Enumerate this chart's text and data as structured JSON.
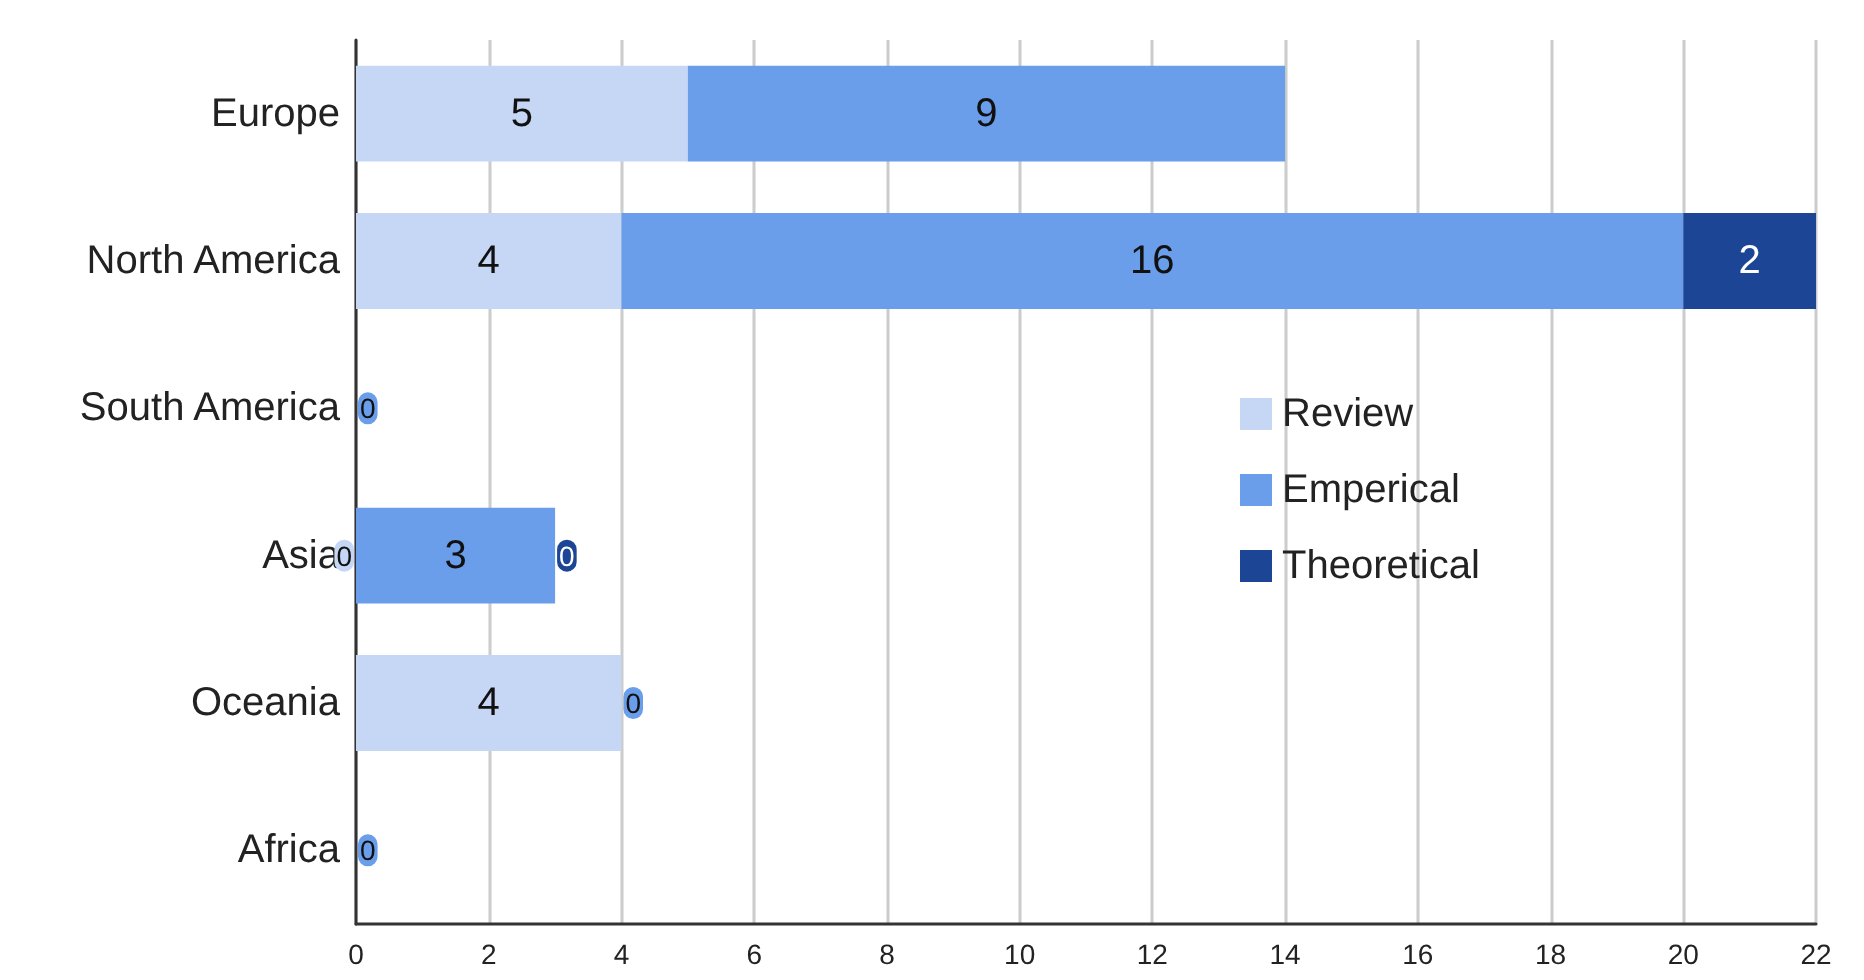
{
  "chart_data": {
    "type": "bar",
    "orientation": "horizontal",
    "stacked": true,
    "categories": [
      "Europe",
      "North America",
      "South America",
      "Asia",
      "Oceania",
      "Africa"
    ],
    "series": [
      {
        "name": "Review",
        "color": "#c6d7f5",
        "values": [
          5,
          4,
          0,
          0,
          4,
          0
        ],
        "value_labels": [
          "5",
          "4",
          null,
          "0",
          "4",
          null
        ]
      },
      {
        "name": "Emperical",
        "color": "#6a9eea",
        "values": [
          9,
          16,
          0,
          3,
          0,
          0
        ],
        "value_labels": [
          "9",
          "16",
          "0",
          "3",
          "0",
          "0"
        ]
      },
      {
        "name": "Theoretical",
        "color": "#1c4595",
        "values": [
          0,
          2,
          0,
          0,
          0,
          0
        ],
        "value_labels": [
          null,
          "2",
          null,
          "0",
          null,
          null
        ]
      }
    ],
    "xlim": [
      0,
      22
    ],
    "xticks": [
      0,
      2,
      4,
      6,
      8,
      10,
      12,
      14,
      16,
      18,
      20,
      22
    ],
    "grid": "x",
    "legend": "right"
  }
}
